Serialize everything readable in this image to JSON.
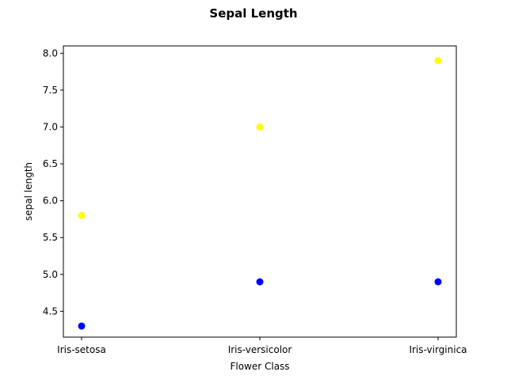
{
  "chart_data": {
    "type": "scatter",
    "title": "Sepal Length",
    "xlabel": "Flower Class",
    "ylabel": "sepal length",
    "categories": [
      "Iris-setosa",
      "Iris-versicolor",
      "Iris-virginica"
    ],
    "ylim": [
      4.15,
      8.1
    ],
    "yticks": [
      "4.5",
      "5.0",
      "5.5",
      "6.0",
      "6.5",
      "7.0",
      "7.5",
      "8.0"
    ],
    "grid": false,
    "legend": "none",
    "series": [
      {
        "color": "#ffff00",
        "values": [
          5.8,
          7.0,
          7.9
        ]
      },
      {
        "color": "#0000ff",
        "values": [
          4.3,
          4.9,
          4.9
        ]
      }
    ]
  }
}
